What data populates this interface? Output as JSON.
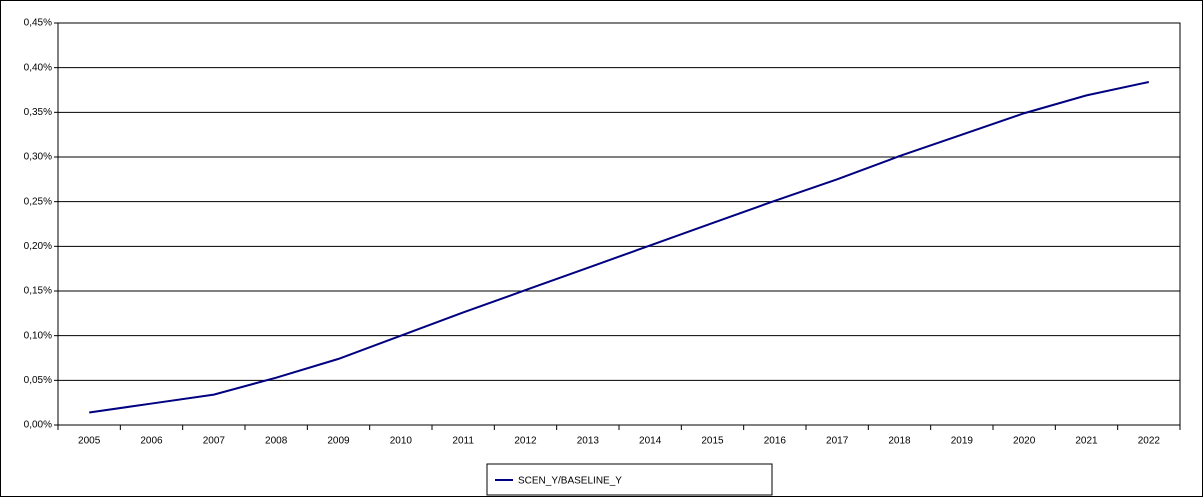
{
  "chart_data": {
    "type": "line",
    "categories": [
      "2005",
      "2006",
      "2007",
      "2008",
      "2009",
      "2010",
      "2011",
      "2012",
      "2013",
      "2014",
      "2015",
      "2016",
      "2017",
      "2018",
      "2019",
      "2020",
      "2021",
      "2022"
    ],
    "series": [
      {
        "name": "SCEN_Y/BASELINE_Y",
        "color": "#000080",
        "values": [
          0.014,
          0.024,
          0.034,
          0.053,
          0.074,
          0.1,
          0.126,
          0.151,
          0.176,
          0.201,
          0.226,
          0.251,
          0.275,
          0.301,
          0.325,
          0.349,
          0.369,
          0.384
        ]
      }
    ],
    "ylim": [
      0,
      0.45
    ],
    "yticks": [
      {
        "value": 0,
        "label": "0,00%"
      },
      {
        "value": 0.05,
        "label": "0,05%"
      },
      {
        "value": 0.1,
        "label": "0,10%"
      },
      {
        "value": 0.15,
        "label": "0,15%"
      },
      {
        "value": 0.2,
        "label": "0,20%"
      },
      {
        "value": 0.25,
        "label": "0,25%"
      },
      {
        "value": 0.3,
        "label": "0,30%"
      },
      {
        "value": 0.35,
        "label": "0,35%"
      },
      {
        "value": 0.4,
        "label": "0,40%"
      },
      {
        "value": 0.45,
        "label": "0,45%"
      }
    ],
    "grid": true,
    "legend": "bottom"
  }
}
